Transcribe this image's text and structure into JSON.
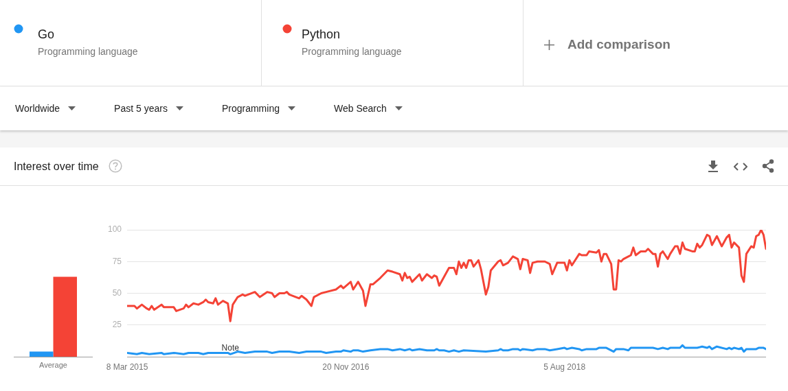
{
  "chart_data": [
    {
      "type": "bar",
      "title": "Interest over time",
      "categories": [
        "Average"
      ],
      "series": [
        {
          "color": "#2196f3",
          "values": [
            4
          ]
        },
        {
          "color": "#f44336",
          "values": [
            63
          ]
        }
      ],
      "ylim": [
        0,
        100
      ],
      "tick_labels": "x"
    },
    {
      "type": "line",
      "annotations": [
        "Programming language",
        "Programming language",
        "Add comparison",
        "Worldwide",
        "Past 5 years",
        "Programming",
        "Web Search",
        {
          "text": "Note",
          "x": "2015-12-27",
          "y": 3
        }
      ],
      "xlim": [
        "2015-03-08",
        "2020-03-01"
      ],
      "xticks": [
        {
          "value": "2015-03-08",
          "label": "8 Mar 2015"
        },
        {
          "value": "2016-11-20",
          "label": "20 Nov 2016"
        },
        {
          "value": "2018-08-05",
          "label": "5 Aug 2018"
        }
      ],
      "ylim": [
        0,
        100
      ],
      "yticks": [
        {
          "value": 0,
          "label": null
        },
        25,
        50,
        75,
        100
      ],
      "grid": "y",
      "legend": "top",
      "marker": "none",
      "line_style": "solid",
      "series": [
        {
          "name": "Go",
          "color": "#2196f3",
          "x": [
            "2015-03-08",
            "2015-04-05",
            "2015-04-19",
            "2015-05-10",
            "2015-06-14",
            "2015-06-21",
            "2015-07-19",
            "2015-08-16",
            "2015-08-30",
            "2015-09-27",
            "2015-10-11",
            "2015-10-25",
            "2015-12-20",
            "2015-12-27",
            "2016-01-17",
            "2016-02-07",
            "2016-03-06",
            "2016-04-10",
            "2016-04-24",
            "2016-05-15",
            "2016-06-12",
            "2016-07-10",
            "2016-07-31",
            "2016-09-11",
            "2016-09-25",
            "2016-10-23",
            "2016-11-06",
            "2016-11-13",
            "2016-12-04",
            "2016-12-11",
            "2016-12-25",
            "2017-01-08",
            "2017-01-29",
            "2017-02-26",
            "2017-03-19",
            "2017-04-02",
            "2017-04-23",
            "2017-05-07",
            "2017-05-21",
            "2017-05-28",
            "2017-06-18",
            "2017-07-09",
            "2017-07-30",
            "2017-08-06",
            "2017-08-13",
            "2017-08-27",
            "2017-09-10",
            "2017-09-24",
            "2017-10-08",
            "2017-10-22",
            "2017-12-24",
            "2018-01-28",
            "2018-02-04",
            "2018-02-11",
            "2018-02-25",
            "2018-03-11",
            "2018-03-25",
            "2018-04-01",
            "2018-04-08",
            "2018-05-06",
            "2018-05-20",
            "2018-06-10",
            "2018-06-24",
            "2018-07-15",
            "2018-08-05",
            "2018-08-12",
            "2018-08-26",
            "2018-09-16",
            "2018-09-23",
            "2018-10-07",
            "2018-11-04",
            "2018-11-11",
            "2018-11-25",
            "2018-12-02",
            "2018-12-23",
            "2018-12-30",
            "2019-01-06",
            "2019-01-20",
            "2019-02-03",
            "2019-02-10",
            "2019-02-24",
            "2019-03-10",
            "2019-03-24",
            "2019-04-14",
            "2019-04-28",
            "2019-05-12",
            "2019-05-26",
            "2019-06-02",
            "2019-06-16",
            "2019-06-30",
            "2019-07-07",
            "2019-07-14",
            "2019-08-04",
            "2019-08-18",
            "2019-09-01",
            "2019-09-15",
            "2019-09-22",
            "2019-09-29",
            "2019-10-13",
            "2019-11-10",
            "2019-11-17",
            "2019-11-24",
            "2019-12-01",
            "2019-12-15",
            "2019-12-22",
            "2019-12-29",
            "2020-01-05",
            "2020-02-02",
            "2020-02-09",
            "2020-02-23",
            "2020-03-01"
          ],
          "values": [
            3,
            2,
            3,
            2,
            3,
            2,
            3,
            2,
            3,
            3,
            2,
            3,
            3,
            2,
            4,
            3,
            4,
            4,
            3,
            4,
            4,
            3,
            4,
            4,
            3,
            4,
            4,
            5,
            4,
            5,
            5,
            4,
            5,
            6,
            6,
            5,
            6,
            5,
            6,
            5,
            6,
            5,
            5,
            6,
            5,
            5,
            4,
            5,
            4,
            5,
            4,
            5,
            6,
            5,
            5,
            6,
            6,
            5,
            6,
            5,
            6,
            6,
            5,
            6,
            7,
            6,
            7,
            6,
            5,
            6,
            6,
            7,
            7,
            7,
            4,
            6,
            6,
            6,
            5,
            7,
            7,
            7,
            7,
            7,
            6,
            7,
            6,
            7,
            7,
            7,
            9,
            7,
            7,
            7,
            8,
            7,
            8,
            6,
            8,
            6,
            7,
            6,
            7,
            6,
            7,
            4,
            6,
            6,
            7,
            7,
            6
          ]
        },
        {
          "name": "Python",
          "color": "#f44336",
          "x": [
            "2015-03-08",
            "2015-03-29",
            "2015-04-05",
            "2015-04-19",
            "2015-05-03",
            "2015-05-10",
            "2015-05-17",
            "2015-05-24",
            "2015-06-14",
            "2015-06-21",
            "2015-07-19",
            "2015-07-26",
            "2015-08-16",
            "2015-08-23",
            "2015-08-30",
            "2015-09-13",
            "2015-09-27",
            "2015-10-11",
            "2015-10-18",
            "2015-10-25",
            "2015-11-08",
            "2015-11-15",
            "2015-11-22",
            "2015-12-06",
            "2015-12-20",
            "2015-12-27",
            "2016-01-03",
            "2016-01-17",
            "2016-01-31",
            "2016-02-07",
            "2016-03-06",
            "2016-03-20",
            "2016-04-10",
            "2016-04-24",
            "2016-05-01",
            "2016-05-15",
            "2016-05-29",
            "2016-06-05",
            "2016-06-12",
            "2016-07-10",
            "2016-07-17",
            "2016-07-31",
            "2016-08-14",
            "2016-08-21",
            "2016-09-11",
            "2016-09-25",
            "2016-10-23",
            "2016-11-06",
            "2016-11-13",
            "2016-12-04",
            "2016-12-11",
            "2016-12-25",
            "2017-01-08",
            "2017-01-15",
            "2017-01-29",
            "2017-02-05",
            "2017-02-26",
            "2017-03-19",
            "2017-04-02",
            "2017-04-23",
            "2017-04-30",
            "2017-05-07",
            "2017-05-14",
            "2017-05-21",
            "2017-05-28",
            "2017-06-18",
            "2017-06-25",
            "2017-07-09",
            "2017-07-23",
            "2017-07-30",
            "2017-08-06",
            "2017-08-13",
            "2017-08-27",
            "2017-09-10",
            "2017-09-24",
            "2017-10-01",
            "2017-10-08",
            "2017-10-15",
            "2017-10-22",
            "2017-10-29",
            "2017-11-05",
            "2017-11-12",
            "2017-11-19",
            "2017-12-03",
            "2017-12-10",
            "2017-12-24",
            "2017-12-31",
            "2018-01-07",
            "2018-01-28",
            "2018-02-04",
            "2018-02-11",
            "2018-02-25",
            "2018-03-11",
            "2018-03-25",
            "2018-04-01",
            "2018-04-08",
            "2018-04-22",
            "2018-04-29",
            "2018-05-06",
            "2018-05-20",
            "2018-06-10",
            "2018-06-24",
            "2018-07-01",
            "2018-07-15",
            "2018-08-05",
            "2018-08-12",
            "2018-08-19",
            "2018-08-26",
            "2018-09-16",
            "2018-09-23",
            "2018-10-07",
            "2018-10-14",
            "2018-11-04",
            "2018-11-11",
            "2018-11-18",
            "2018-11-25",
            "2018-12-02",
            "2018-12-16",
            "2018-12-23",
            "2018-12-30",
            "2019-01-06",
            "2019-01-13",
            "2019-01-20",
            "2019-02-03",
            "2019-02-10",
            "2019-02-17",
            "2019-02-24",
            "2019-03-10",
            "2019-03-24",
            "2019-03-31",
            "2019-04-14",
            "2019-04-21",
            "2019-04-28",
            "2019-05-05",
            "2019-05-12",
            "2019-05-26",
            "2019-06-02",
            "2019-06-16",
            "2019-06-23",
            "2019-06-30",
            "2019-07-07",
            "2019-07-14",
            "2019-08-04",
            "2019-08-11",
            "2019-08-18",
            "2019-08-25",
            "2019-09-01",
            "2019-09-15",
            "2019-09-22",
            "2019-09-29",
            "2019-10-13",
            "2019-10-27",
            "2019-11-10",
            "2019-11-17",
            "2019-11-24",
            "2019-12-01",
            "2019-12-15",
            "2019-12-22",
            "2019-12-29",
            "2020-01-05",
            "2020-01-19",
            "2020-01-26",
            "2020-02-02",
            "2020-02-09",
            "2020-02-16",
            "2020-02-23",
            "2020-03-01"
          ],
          "values": [
            40,
            40,
            38,
            41,
            38,
            37,
            40,
            37,
            41,
            39,
            39,
            36,
            38,
            41,
            39,
            42,
            41,
            43,
            45,
            43,
            42,
            46,
            41,
            44,
            42,
            28,
            41,
            47,
            49,
            48,
            51,
            47,
            51,
            50,
            47,
            50,
            50,
            51,
            49,
            46,
            48,
            45,
            40,
            47,
            50,
            51,
            53,
            56,
            54,
            59,
            53,
            59,
            52,
            40,
            57,
            57,
            62,
            68,
            67,
            65,
            60,
            66,
            62,
            63,
            59,
            65,
            60,
            65,
            62,
            64,
            63,
            56,
            63,
            70,
            70,
            65,
            75,
            70,
            74,
            70,
            76,
            76,
            71,
            76,
            69,
            49,
            55,
            68,
            75,
            76,
            72,
            74,
            79,
            77,
            69,
            77,
            76,
            66,
            74,
            75,
            75,
            73,
            65,
            74,
            74,
            68,
            76,
            72,
            81,
            80,
            80,
            83,
            82,
            84,
            75,
            81,
            81,
            73,
            53,
            53,
            76,
            75,
            77,
            79,
            80,
            86,
            80,
            83,
            83,
            85,
            81,
            81,
            71,
            81,
            83,
            77,
            81,
            87,
            87,
            81,
            90,
            85,
            83,
            83,
            89,
            86,
            88,
            96,
            95,
            88,
            95,
            87,
            94,
            96,
            86,
            90,
            86,
            64,
            59,
            81,
            87,
            86,
            95,
            96,
            100,
            96,
            85
          ]
        }
      ]
    }
  ]
}
